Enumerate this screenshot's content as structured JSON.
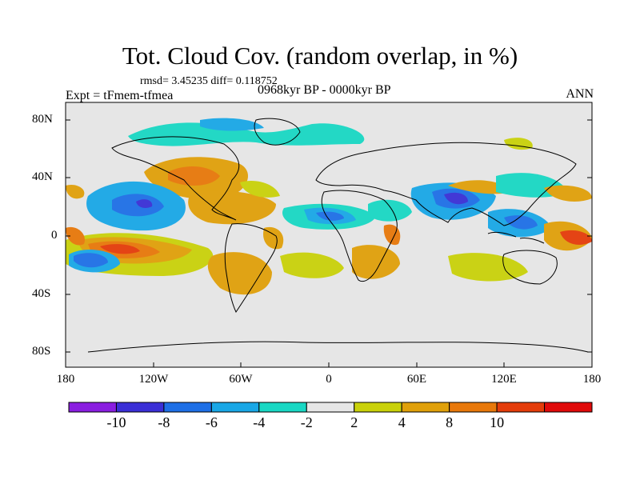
{
  "title": "Tot. Cloud Cov. (random overlap, in %)",
  "stats_line": "rmsd= 3.45235 diff= 0.118752",
  "experiment": "Expt = tFmem-tfmea",
  "period": "0968kyr BP - 0000kyr BP",
  "season": "ANN",
  "lat_labels": [
    "80N",
    "40N",
    "0",
    "40S",
    "80S"
  ],
  "lon_labels": [
    "180",
    "120W",
    "60W",
    "0",
    "60E",
    "120E",
    "180"
  ],
  "colorbar": {
    "colors": [
      "#8a1ee0",
      "#3a2fd6",
      "#1e6fe6",
      "#19a7e6",
      "#19d8c4",
      "#e6e6e6",
      "#c9d10a",
      "#e0a00a",
      "#e8780a",
      "#e43c0a",
      "#e00a0a"
    ],
    "labels": [
      "-10",
      "-8",
      "-6",
      "-4",
      "-2",
      "2",
      "4",
      "8",
      "10"
    ]
  }
}
